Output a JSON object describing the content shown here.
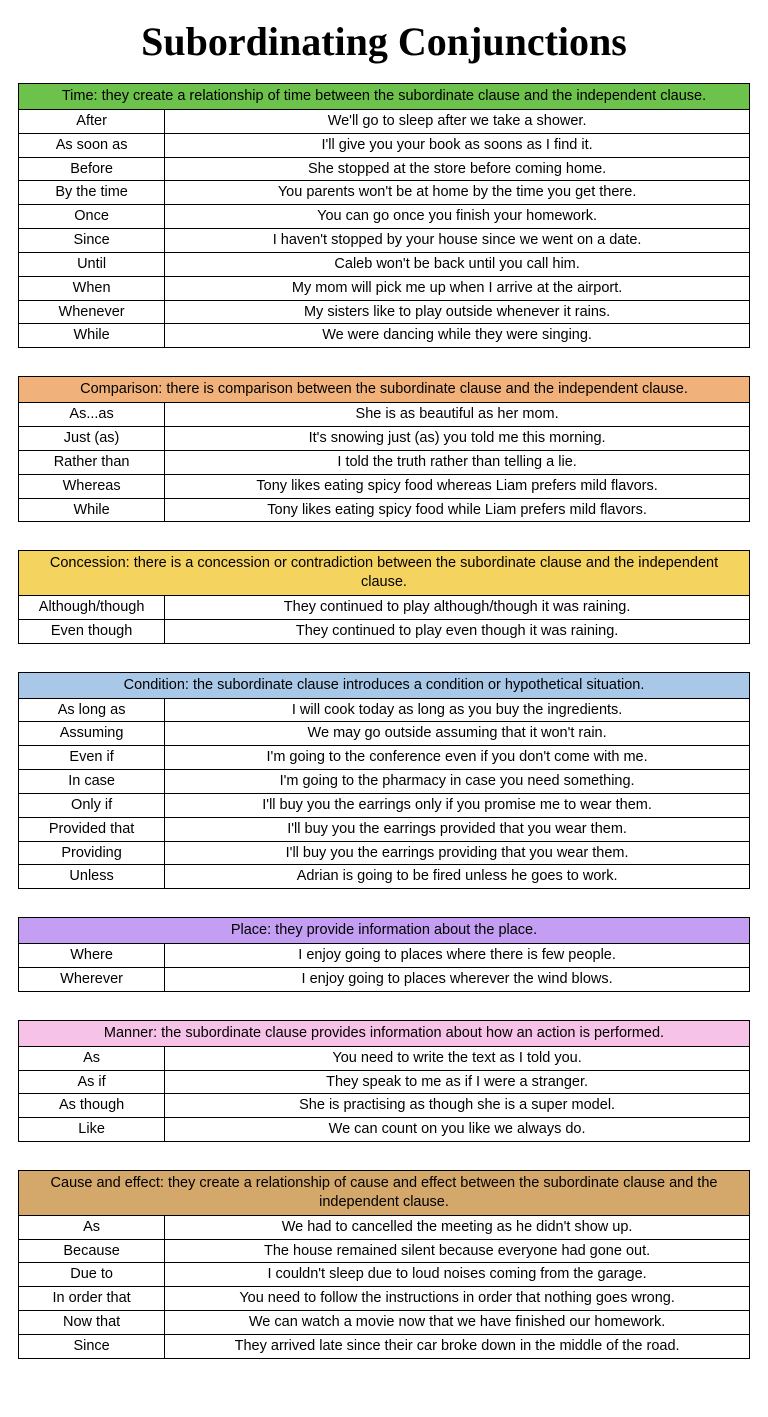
{
  "title": "Subordinating Conjunctions",
  "sections": [
    {
      "header": "Time: they create a relationship of time between the subordinate clause and the independent clause.",
      "color": "#6cc24a",
      "rows": [
        {
          "conj": "After",
          "example": "We'll go to sleep after we take a shower."
        },
        {
          "conj": "As soon as",
          "example": "I'll give you your book as soons as I find it."
        },
        {
          "conj": "Before",
          "example": "She stopped at the store before coming home."
        },
        {
          "conj": "By the time",
          "example": "You parents won't be at home by the time you get there."
        },
        {
          "conj": "Once",
          "example": "You can go once you finish your homework."
        },
        {
          "conj": "Since",
          "example": "I haven't stopped by your house since we went on a date."
        },
        {
          "conj": "Until",
          "example": "Caleb won't be back until you call him."
        },
        {
          "conj": "When",
          "example": "My mom will pick me up when I arrive at the airport."
        },
        {
          "conj": "Whenever",
          "example": "My sisters like to play outside whenever it rains."
        },
        {
          "conj": "While",
          "example": "We were dancing while they were singing."
        }
      ]
    },
    {
      "header": "Comparison: there is comparison between the subordinate clause and the independent clause.",
      "color": "#f0b27a",
      "rows": [
        {
          "conj": "As...as",
          "example": "She is as beautiful as her mom."
        },
        {
          "conj": "Just (as)",
          "example": "It's snowing just (as) you told me this morning."
        },
        {
          "conj": "Rather than",
          "example": "I told the truth rather than telling a lie."
        },
        {
          "conj": "Whereas",
          "example": "Tony likes eating spicy food whereas Liam prefers mild flavors."
        },
        {
          "conj": "While",
          "example": "Tony likes eating spicy food while Liam prefers mild flavors."
        }
      ]
    },
    {
      "header": "Concession: there is a concession or contradiction between the subordinate clause and the independent clause.",
      "color": "#f4d35e",
      "rows": [
        {
          "conj": "Although/though",
          "example": "They continued to play although/though it was raining."
        },
        {
          "conj": "Even though",
          "example": "They continued to play even though it was raining."
        }
      ]
    },
    {
      "header": "Condition: the subordinate clause introduces a condition or hypothetical situation.",
      "color": "#a9c8e8",
      "rows": [
        {
          "conj": "As long as",
          "example": "I will cook today as long as you buy the ingredients."
        },
        {
          "conj": "Assuming",
          "example": "We may go outside assuming that it won't rain."
        },
        {
          "conj": "Even if",
          "example": "I'm going to the conference even if you don't come with me."
        },
        {
          "conj": "In case",
          "example": "I'm going to the pharmacy in case you need something."
        },
        {
          "conj": "Only if",
          "example": "I'll buy you the earrings only if you promise me to wear them."
        },
        {
          "conj": "Provided that",
          "example": "I'll buy you the earrings provided that you wear them."
        },
        {
          "conj": "Providing",
          "example": "I'll buy you the earrings providing that you wear them."
        },
        {
          "conj": "Unless",
          "example": "Adrian is going to be fired unless he goes to work."
        }
      ]
    },
    {
      "header": "Place: they provide information about the place.",
      "color": "#c39ef2",
      "rows": [
        {
          "conj": "Where",
          "example": "I enjoy going to places where there is few people."
        },
        {
          "conj": "Wherever",
          "example": "I enjoy going to places wherever the wind blows."
        }
      ]
    },
    {
      "header": "Manner: the subordinate clause provides information about how an action is performed.",
      "color": "#f6c2e8",
      "rows": [
        {
          "conj": "As",
          "example": "You need to write the text as I told you."
        },
        {
          "conj": "As if",
          "example": "They speak to me as if I were a stranger."
        },
        {
          "conj": "As though",
          "example": "She is practising as though she is a super model."
        },
        {
          "conj": "Like",
          "example": "We can count on you like we always do."
        }
      ]
    },
    {
      "header": "Cause and effect: they create a relationship of cause and effect between the subordinate clause and the independent clause.",
      "color": "#d4a76a",
      "rows": [
        {
          "conj": "As",
          "example": "We had to cancelled the meeting as he didn't show up."
        },
        {
          "conj": "Because",
          "example": "The house remained silent because everyone had gone out."
        },
        {
          "conj": "Due to",
          "example": "I couldn't sleep due to loud noises coming from the garage."
        },
        {
          "conj": "In order that",
          "example": "You need to follow the instructions in order that nothing goes wrong."
        },
        {
          "conj": "Now that",
          "example": "We can watch a movie now that we have finished our homework."
        },
        {
          "conj": "Since",
          "example": "They arrived late since their car broke down in the middle of the road."
        }
      ]
    }
  ]
}
